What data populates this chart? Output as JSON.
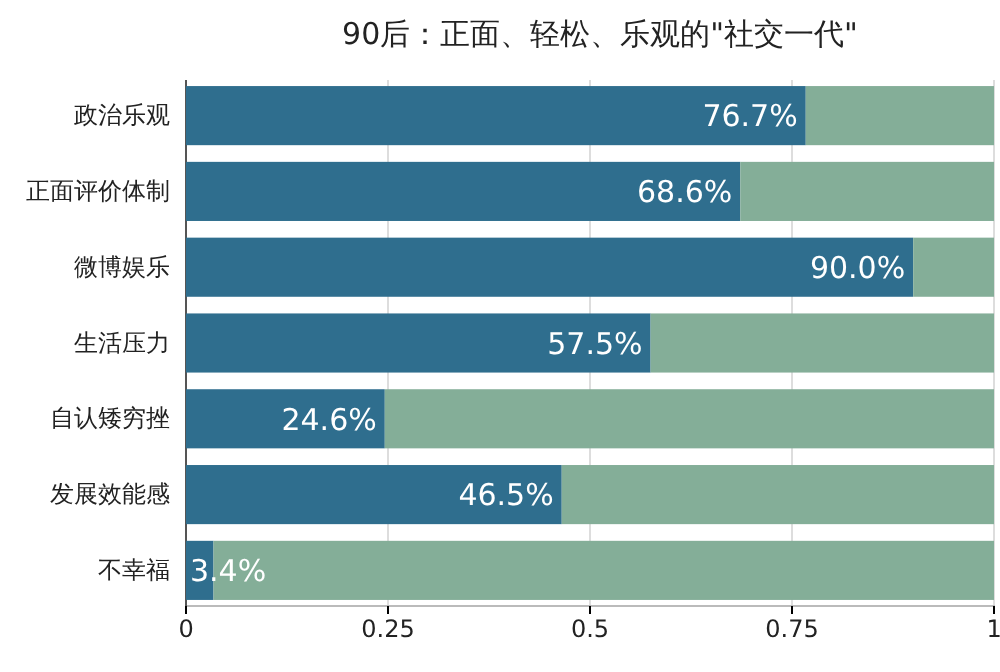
{
  "chart_data": {
    "type": "bar",
    "orientation": "horizontal",
    "stacked": true,
    "title": "90后：正面、轻松、乐观的\"社交一代\"",
    "categories": [
      "政治乐观",
      "正面评价体制",
      "微博娱乐",
      "生活压力",
      "自认矮穷挫",
      "发展效能感",
      "不幸福"
    ],
    "series": [
      {
        "color": "#2f6e8e",
        "values": [
          0.767,
          0.686,
          0.9,
          0.575,
          0.246,
          0.465,
          0.034
        ],
        "value_labels": [
          "76.7%",
          "68.6%",
          "90.0%",
          "57.5%",
          "24.6%",
          "46.5%",
          "3.4%"
        ]
      },
      {
        "color": "#84ae98",
        "values": [
          0.233,
          0.314,
          0.1,
          0.425,
          0.754,
          0.535,
          0.966
        ]
      }
    ],
    "xlim": [
      0,
      1
    ],
    "xticks": [
      0,
      0.25,
      0.5,
      0.75,
      1
    ],
    "grid": "x"
  }
}
